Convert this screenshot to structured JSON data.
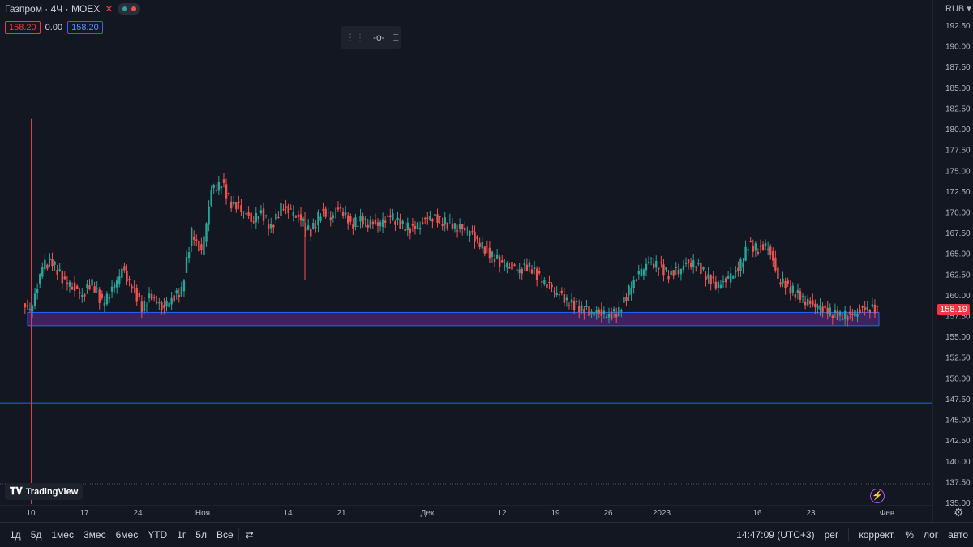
{
  "legend": {
    "title": "Газпром · 4Ч · MOEX",
    "close_icon": "close-icon"
  },
  "ohlc": {
    "price1": "158.20",
    "change": "0.00",
    "price2": "158.20"
  },
  "currency": "RUB",
  "current_price_label": "158.19",
  "logo": "TradingView",
  "bottom": {
    "ranges": [
      "1д",
      "5д",
      "1мес",
      "3мес",
      "6мес",
      "YTD",
      "1г",
      "5л",
      "Все"
    ],
    "time": "14:47:09 (UTC+3)",
    "session": "рег",
    "adjust": "коррект.",
    "percent": "%",
    "log": "лог",
    "auto": "авто"
  },
  "colors": {
    "up": "#26a69a",
    "down": "#ef5350",
    "bg": "#131722",
    "zone": "#4a2a7a",
    "hline": "#2962ff"
  },
  "chart_data": {
    "type": "candlestick",
    "y_axis_ticks": [
      "192.50",
      "190.00",
      "187.50",
      "185.00",
      "182.50",
      "180.00",
      "177.50",
      "175.00",
      "172.50",
      "170.00",
      "167.50",
      "165.00",
      "162.50",
      "160.00",
      "157.50",
      "155.00",
      "152.50",
      "150.00",
      "147.50",
      "145.00",
      "142.50",
      "140.00",
      "137.50",
      "135.00"
    ],
    "ylim": [
      135.0,
      192.5
    ],
    "x_axis_ticks": [
      "10",
      "17",
      "24",
      "Ноя",
      "14",
      "21",
      "Дек",
      "12",
      "19",
      "26",
      "2023",
      "16",
      "23",
      "Фев"
    ],
    "horizontal_line": 147.0,
    "support_zone": [
      156.3,
      157.9
    ],
    "price_line": 158.19,
    "close_series": [
      158.5,
      163.5,
      164.0,
      162.0,
      161.0,
      160.0,
      161.5,
      159.0,
      160.5,
      163.0,
      161.0,
      158.5,
      160.0,
      158.5,
      159.5,
      160.5,
      167.5,
      165.0,
      172.5,
      173.5,
      171.0,
      170.5,
      169.0,
      170.0,
      168.0,
      170.5,
      170.0,
      169.0,
      167.5,
      170.0,
      169.5,
      170.5,
      168.5,
      169.0,
      168.5,
      168.5,
      169.5,
      168.5,
      168.0,
      168.5,
      169.5,
      169.0,
      168.5,
      168.0,
      167.5,
      166.0,
      165.0,
      164.0,
      163.5,
      163.0,
      163.5,
      162.0,
      161.0,
      160.0,
      159.0,
      158.5,
      158.0,
      158.0,
      157.5,
      158.0,
      160.5,
      162.5,
      164.0,
      163.5,
      162.5,
      163.0,
      164.0,
      163.5,
      162.0,
      161.0,
      162.0,
      163.0,
      166.0,
      165.5,
      166.0,
      162.0,
      161.0,
      160.0,
      159.0,
      158.5,
      158.0,
      157.5,
      157.5,
      158.0,
      158.5,
      158.2
    ]
  }
}
